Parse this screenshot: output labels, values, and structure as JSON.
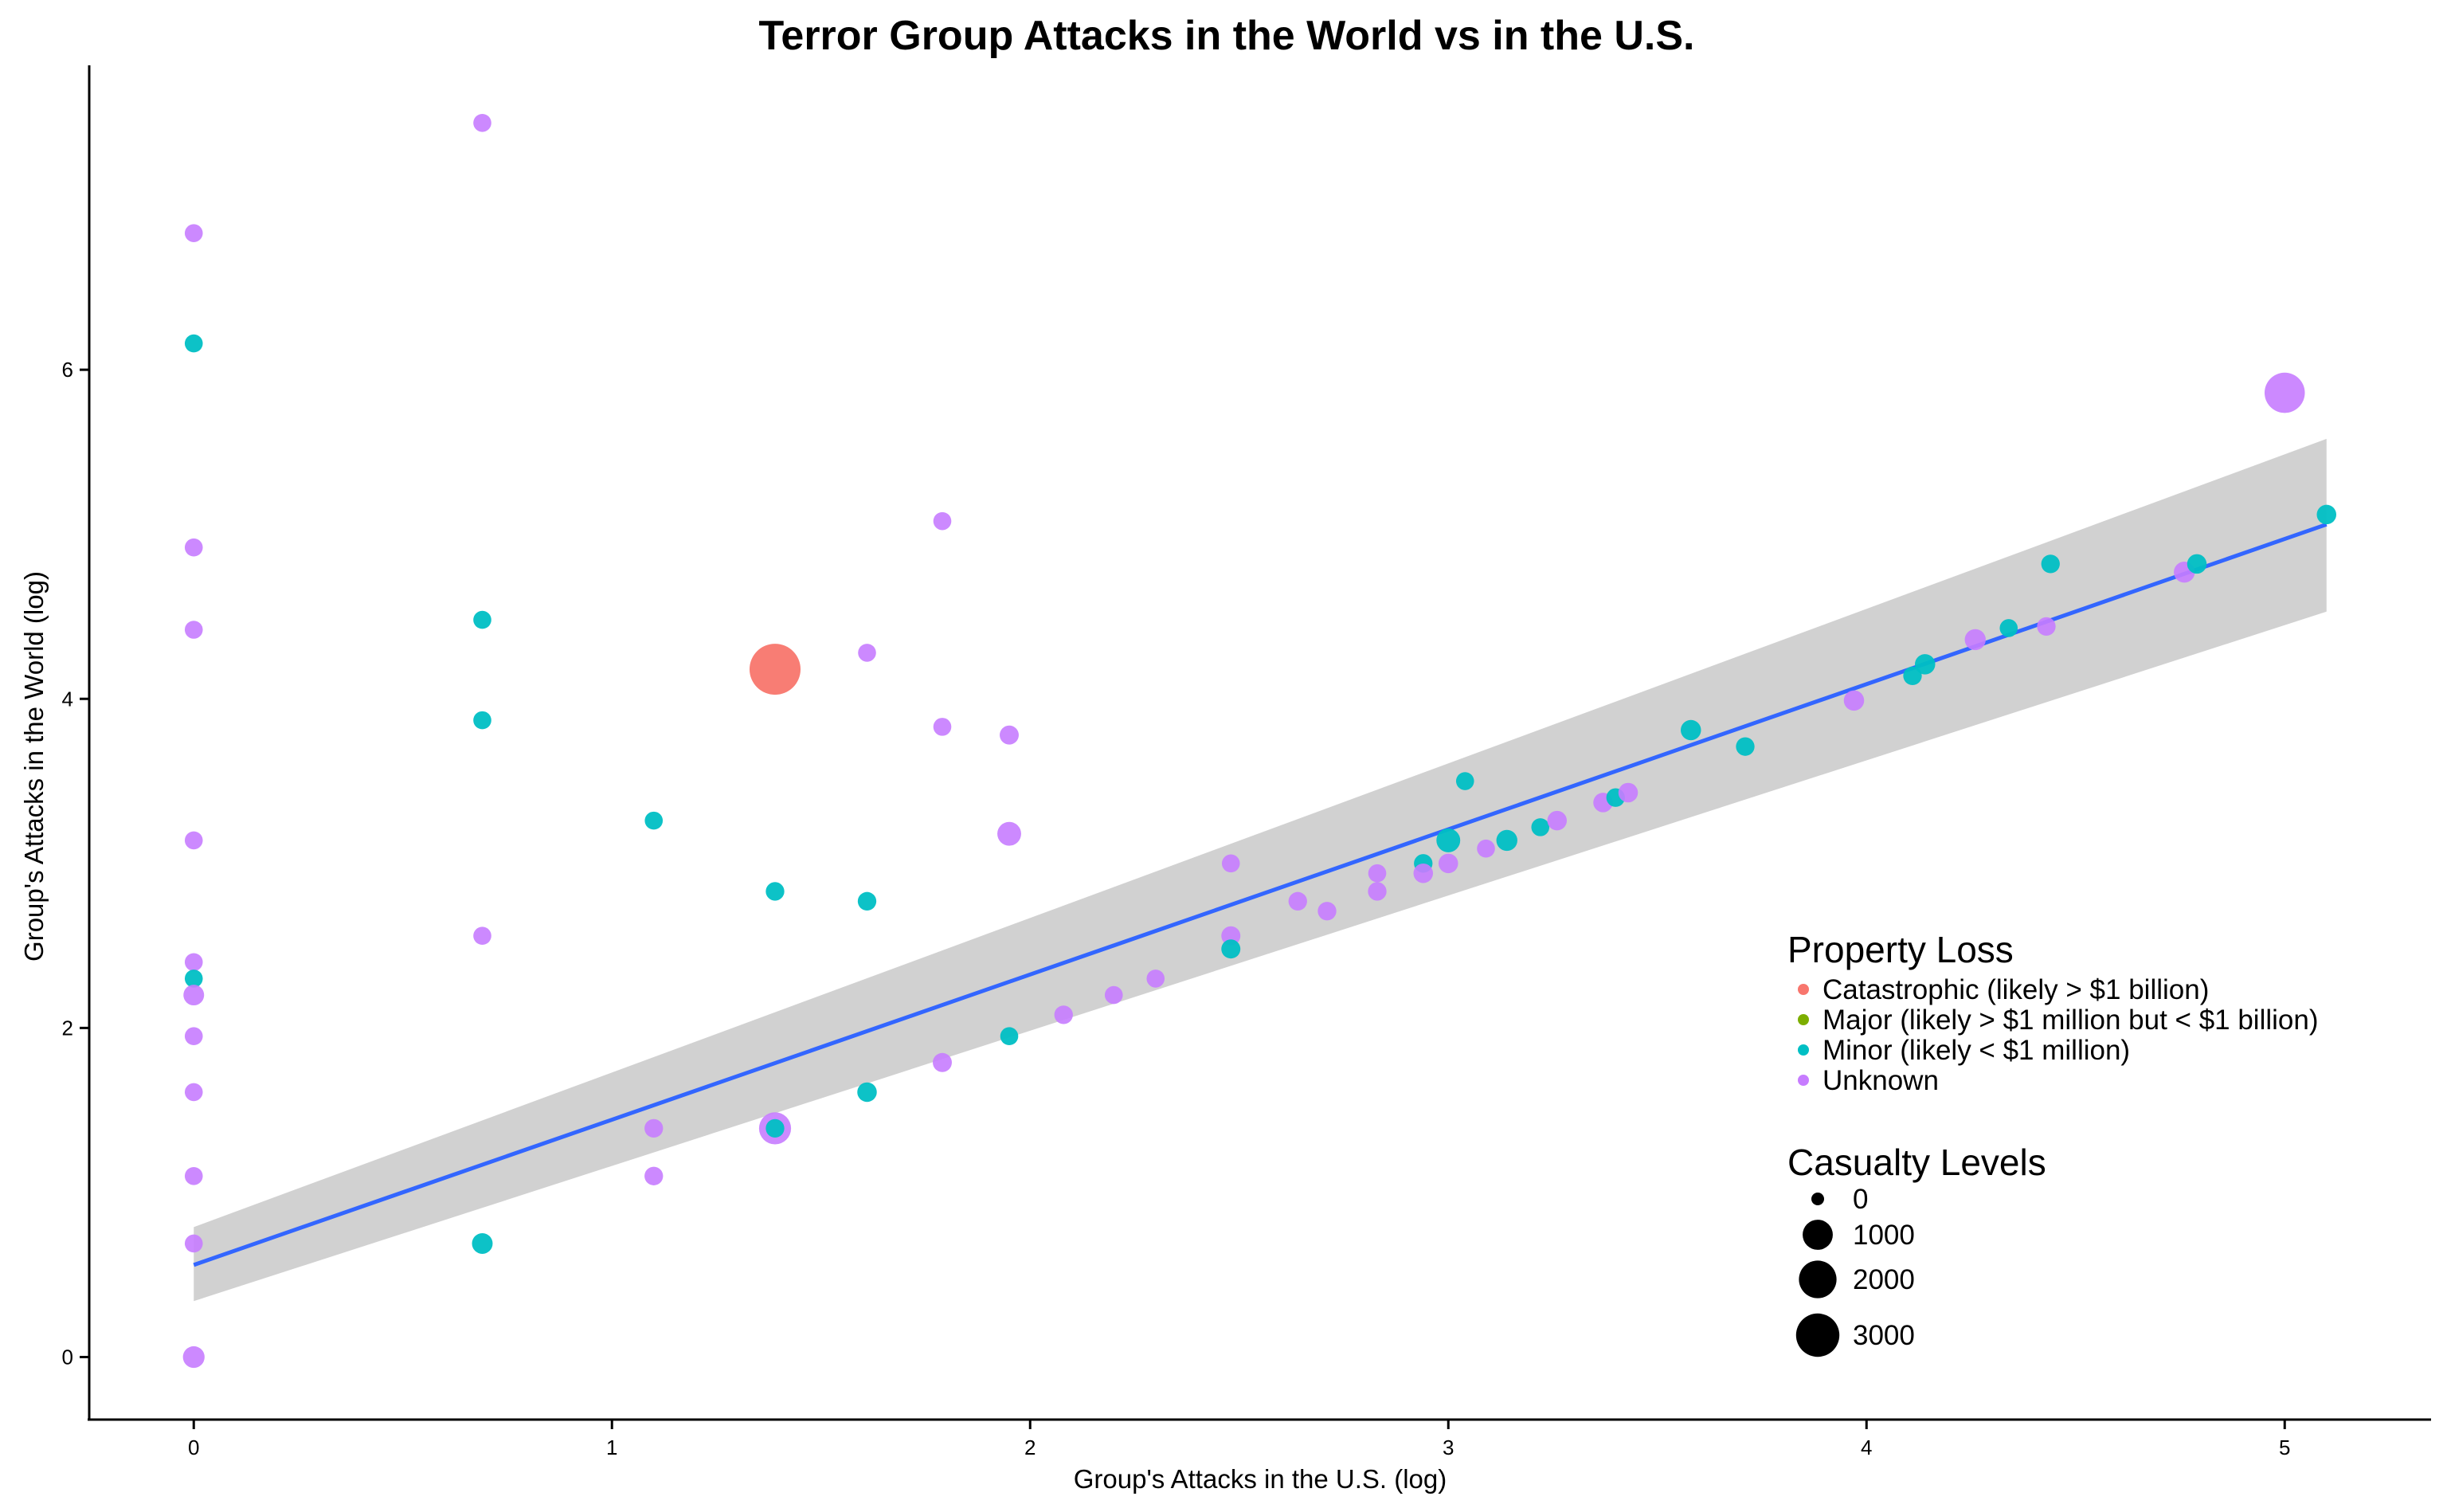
{
  "chart_data": {
    "type": "scatter",
    "title": "Terror Group Attacks in the World vs in the U.S.",
    "xlabel": "Group's Attacks in the U.S. (log)",
    "ylabel": "Group's Attacks in the World (log)",
    "xlim": [
      -0.25,
      5.35
    ],
    "ylim": [
      -0.38,
      7.85
    ],
    "x_ticks": [
      0,
      1,
      2,
      3,
      4,
      5
    ],
    "y_ticks": [
      0,
      2,
      4,
      6
    ],
    "grid": false,
    "legend_placement": "bottom-right",
    "legend_color": {
      "title": "Property Loss",
      "entries": [
        {
          "label": "Catastrophic (likely > $1 billion)",
          "color": "#F8766D"
        },
        {
          "label": "Major (likely > $1 million but < $1 billion)",
          "color": "#7CAE00"
        },
        {
          "label": "Minor (likely < $1 million)",
          "color": "#00BFC4"
        },
        {
          "label": "Unknown",
          "color": "#C77CFF"
        }
      ]
    },
    "legend_size": {
      "title": "Casualty Levels",
      "entries": [
        {
          "label": "0",
          "value": 0
        },
        {
          "label": "1000",
          "value": 1000
        },
        {
          "label": "2000",
          "value": 2000
        },
        {
          "label": "3000",
          "value": 3000
        }
      ]
    },
    "fit_line": {
      "color": "#3366FF",
      "band_color": "#999999",
      "x": [
        0,
        5.1
      ],
      "y": [
        0.56,
        5.06
      ],
      "band_lower": [
        0.34,
        4.53
      ],
      "band_upper": [
        0.79,
        5.58
      ]
    },
    "points": [
      {
        "x": 0,
        "y": 6.83,
        "cat": "Unknown",
        "size": 30
      },
      {
        "x": 0,
        "y": 6.16,
        "cat": "Minor",
        "size": 30
      },
      {
        "x": 0,
        "y": 4.92,
        "cat": "Unknown",
        "size": 30
      },
      {
        "x": 0,
        "y": 4.42,
        "cat": "Unknown",
        "size": 30
      },
      {
        "x": 0,
        "y": 3.14,
        "cat": "Unknown",
        "size": 30
      },
      {
        "x": 0,
        "y": 2.4,
        "cat": "Unknown",
        "size": 30
      },
      {
        "x": 0,
        "y": 2.3,
        "cat": "Minor",
        "size": 30
      },
      {
        "x": 0,
        "y": 2.2,
        "cat": "Unknown",
        "size": 90
      },
      {
        "x": 0,
        "y": 1.95,
        "cat": "Unknown",
        "size": 30
      },
      {
        "x": 0,
        "y": 1.61,
        "cat": "Unknown",
        "size": 30
      },
      {
        "x": 0,
        "y": 1.1,
        "cat": "Unknown",
        "size": 30
      },
      {
        "x": 0,
        "y": 0.69,
        "cat": "Unknown",
        "size": 30
      },
      {
        "x": 0,
        "y": 0.0,
        "cat": "Unknown",
        "size": 120
      },
      {
        "x": 0.69,
        "y": 7.5,
        "cat": "Unknown",
        "size": 30
      },
      {
        "x": 0.69,
        "y": 4.48,
        "cat": "Minor",
        "size": 30
      },
      {
        "x": 0.69,
        "y": 3.87,
        "cat": "Minor",
        "size": 30
      },
      {
        "x": 0.69,
        "y": 2.56,
        "cat": "Unknown",
        "size": 30
      },
      {
        "x": 0.69,
        "y": 0.69,
        "cat": "Minor",
        "size": 90
      },
      {
        "x": 1.1,
        "y": 3.26,
        "cat": "Minor",
        "size": 30
      },
      {
        "x": 1.1,
        "y": 1.39,
        "cat": "Unknown",
        "size": 40
      },
      {
        "x": 1.1,
        "y": 1.1,
        "cat": "Unknown",
        "size": 40
      },
      {
        "x": 1.39,
        "y": 4.18,
        "cat": "Catastrophic",
        "size": 3000
      },
      {
        "x": 1.39,
        "y": 2.83,
        "cat": "Minor",
        "size": 40
      },
      {
        "x": 1.39,
        "y": 1.39,
        "cat": "Unknown",
        "size": 700
      },
      {
        "x": 1.39,
        "y": 1.39,
        "cat": "Minor",
        "size": 40
      },
      {
        "x": 1.61,
        "y": 4.28,
        "cat": "Unknown",
        "size": 30
      },
      {
        "x": 1.61,
        "y": 2.77,
        "cat": "Minor",
        "size": 40
      },
      {
        "x": 1.61,
        "y": 1.61,
        "cat": "Minor",
        "size": 60
      },
      {
        "x": 1.79,
        "y": 5.08,
        "cat": "Unknown",
        "size": 30
      },
      {
        "x": 1.79,
        "y": 3.83,
        "cat": "Unknown",
        "size": 30
      },
      {
        "x": 1.79,
        "y": 1.79,
        "cat": "Unknown",
        "size": 50
      },
      {
        "x": 1.95,
        "y": 3.78,
        "cat": "Unknown",
        "size": 50
      },
      {
        "x": 1.95,
        "y": 3.18,
        "cat": "Unknown",
        "size": 200
      },
      {
        "x": 1.95,
        "y": 1.95,
        "cat": "Minor",
        "size": 30
      },
      {
        "x": 2.08,
        "y": 2.08,
        "cat": "Unknown",
        "size": 40
      },
      {
        "x": 2.2,
        "y": 2.2,
        "cat": "Unknown",
        "size": 30
      },
      {
        "x": 2.3,
        "y": 2.3,
        "cat": "Unknown",
        "size": 30
      },
      {
        "x": 2.48,
        "y": 3.0,
        "cat": "Unknown",
        "size": 30
      },
      {
        "x": 2.48,
        "y": 2.56,
        "cat": "Unknown",
        "size": 50
      },
      {
        "x": 2.48,
        "y": 2.48,
        "cat": "Minor",
        "size": 50
      },
      {
        "x": 2.64,
        "y": 2.77,
        "cat": "Unknown",
        "size": 40
      },
      {
        "x": 2.71,
        "y": 2.71,
        "cat": "Unknown",
        "size": 40
      },
      {
        "x": 2.83,
        "y": 2.94,
        "cat": "Unknown",
        "size": 30
      },
      {
        "x": 2.83,
        "y": 2.83,
        "cat": "Unknown",
        "size": 40
      },
      {
        "x": 2.94,
        "y": 3.0,
        "cat": "Minor",
        "size": 40
      },
      {
        "x": 2.94,
        "y": 2.94,
        "cat": "Unknown",
        "size": 60
      },
      {
        "x": 3.0,
        "y": 3.14,
        "cat": "Minor",
        "size": 200
      },
      {
        "x": 3.0,
        "y": 3.0,
        "cat": "Unknown",
        "size": 60
      },
      {
        "x": 3.04,
        "y": 3.5,
        "cat": "Minor",
        "size": 30
      },
      {
        "x": 3.09,
        "y": 3.09,
        "cat": "Unknown",
        "size": 30
      },
      {
        "x": 3.14,
        "y": 3.14,
        "cat": "Minor",
        "size": 100
      },
      {
        "x": 3.22,
        "y": 3.22,
        "cat": "Minor",
        "size": 30
      },
      {
        "x": 3.26,
        "y": 3.26,
        "cat": "Unknown",
        "size": 60
      },
      {
        "x": 3.37,
        "y": 3.37,
        "cat": "Unknown",
        "size": 60
      },
      {
        "x": 3.4,
        "y": 3.4,
        "cat": "Minor",
        "size": 40
      },
      {
        "x": 3.43,
        "y": 3.43,
        "cat": "Unknown",
        "size": 60
      },
      {
        "x": 3.58,
        "y": 3.81,
        "cat": "Minor",
        "size": 80
      },
      {
        "x": 3.71,
        "y": 3.71,
        "cat": "Minor",
        "size": 40
      },
      {
        "x": 3.97,
        "y": 3.99,
        "cat": "Unknown",
        "size": 80
      },
      {
        "x": 4.11,
        "y": 4.14,
        "cat": "Minor",
        "size": 40
      },
      {
        "x": 4.14,
        "y": 4.21,
        "cat": "Minor",
        "size": 80
      },
      {
        "x": 4.26,
        "y": 4.36,
        "cat": "Unknown",
        "size": 100
      },
      {
        "x": 4.34,
        "y": 4.43,
        "cat": "Minor",
        "size": 30
      },
      {
        "x": 4.43,
        "y": 4.44,
        "cat": "Unknown",
        "size": 40
      },
      {
        "x": 4.44,
        "y": 4.82,
        "cat": "Minor",
        "size": 40
      },
      {
        "x": 4.76,
        "y": 4.77,
        "cat": "Unknown",
        "size": 100
      },
      {
        "x": 4.79,
        "y": 4.82,
        "cat": "Minor",
        "size": 60
      },
      {
        "x": 5.0,
        "y": 5.86,
        "cat": "Unknown",
        "size": 1500
      },
      {
        "x": 5.1,
        "y": 5.12,
        "cat": "Minor",
        "size": 60
      }
    ]
  }
}
